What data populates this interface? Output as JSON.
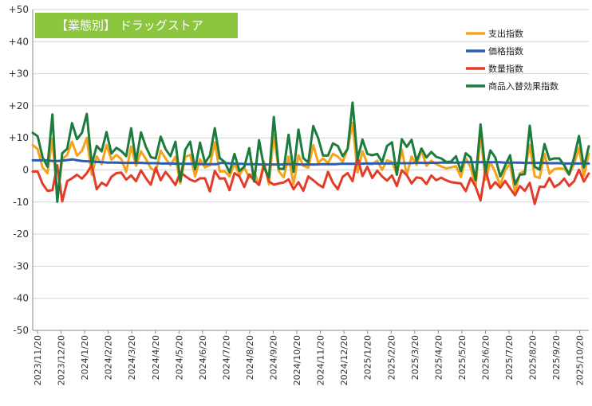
{
  "chart_data": {
    "type": "line",
    "title": "【業態別】 ドラッグストア",
    "ylim": [
      -50,
      50
    ],
    "y_ticks": [
      "+50",
      "+40",
      "+30",
      "+20",
      "+10",
      "0",
      "-10",
      "-20",
      "-30",
      "-40",
      "-50"
    ],
    "x_labels": [
      "2023/11/20",
      "2023/12/20",
      "2024/1/20",
      "2024/2/20",
      "2024/3/20",
      "2024/4/20",
      "2024/5/20",
      "2024/6/20",
      "2024/7/20",
      "2024/8/20",
      "2024/9/20",
      "2024/10/20",
      "2024/11/20",
      "2024/12/20",
      "2025/1/20",
      "2025/2/20",
      "2025/3/20",
      "2025/4/20",
      "2025/5/20",
      "2025/6/20",
      "2025/7/20",
      "2025/8/20",
      "2025/9/20",
      "2025/10/20"
    ],
    "grid": true,
    "legend_position": "top-right",
    "series": [
      {
        "name": "支出指数",
        "color": "#f5a31a",
        "values": [
          7.8,
          6.5,
          0.8,
          -1.0,
          9.8,
          -9.2,
          3.4,
          4.7,
          8.8,
          4.5,
          6.0,
          10.0,
          -1.5,
          4.2,
          1.8,
          7.8,
          3.2,
          4.7,
          3.4,
          -0.6,
          7.3,
          1.3,
          5.8,
          3.4,
          0.6,
          -0.6,
          6.0,
          3.6,
          1.5,
          4.1,
          -4.2,
          4.1,
          4.7,
          -2.0,
          3.3,
          0.8,
          1.5,
          8.6,
          -0.5,
          -0.4,
          -2.0,
          2.0,
          -1.5,
          0.7,
          -2.4,
          -0.6,
          -4.6,
          2.6,
          -4.5,
          11.0,
          -0.4,
          -2.3,
          4.2,
          -4.4,
          4.6,
          1.3,
          0.7,
          7.8,
          2.3,
          3.6,
          2.2,
          5.0,
          4.2,
          2.5,
          6.7,
          14.7,
          -0.8,
          5.8,
          1.9,
          1.8,
          2.9,
          0.0,
          3.0,
          2.5,
          -1.3,
          6.4,
          -1.6,
          4.2,
          1.6,
          6.1,
          1.3,
          2.9,
          1.8,
          1.1,
          0.5,
          0.8,
          1.2,
          -2.2,
          3.7,
          0.7,
          -5.1,
          10.6,
          -3.1,
          2.4,
          -0.7,
          -4.8,
          -0.1,
          1.9,
          -7.0,
          -1.0,
          -0.3,
          7.8,
          -2.0,
          -2.5,
          5.0,
          -1.2,
          0.3,
          0.5,
          0.4,
          -1.5,
          1.8,
          6.9,
          -1.9,
          5.0
        ]
      },
      {
        "name": "価格指数",
        "color": "#2a5cb8",
        "values": [
          3.0,
          3.0,
          3.0,
          3.0,
          2.8,
          2.8,
          2.9,
          3.1,
          3.3,
          3.0,
          2.8,
          2.7,
          2.6,
          2.5,
          2.4,
          2.3,
          2.3,
          2.3,
          2.2,
          2.2,
          2.2,
          2.2,
          2.2,
          2.1,
          2.1,
          2.1,
          2.0,
          2.0,
          2.0,
          1.9,
          1.9,
          1.9,
          1.9,
          1.9,
          1.8,
          1.8,
          1.8,
          1.8,
          2.2,
          2.1,
          2.0,
          1.9,
          1.9,
          1.8,
          1.8,
          1.8,
          1.7,
          1.7,
          1.7,
          1.7,
          1.7,
          1.8,
          1.8,
          1.8,
          1.7,
          1.7,
          1.7,
          1.7,
          1.8,
          1.8,
          1.8,
          1.8,
          1.9,
          1.9,
          1.9,
          1.9,
          1.9,
          2.0,
          2.0,
          2.0,
          2.0,
          2.0,
          2.0,
          2.1,
          2.1,
          2.1,
          2.1,
          2.2,
          2.2,
          2.2,
          2.2,
          2.2,
          2.3,
          2.3,
          2.3,
          2.3,
          2.3,
          2.4,
          2.4,
          2.4,
          2.4,
          2.4,
          2.4,
          2.4,
          2.4,
          2.3,
          2.3,
          2.3,
          2.3,
          2.2,
          2.2,
          2.2,
          2.2,
          2.2,
          2.1,
          2.1,
          2.1,
          2.0,
          2.0,
          2.0,
          2.0,
          2.0,
          2.0
        ]
      },
      {
        "name": "数量指数",
        "color": "#e23c2a",
        "values": [
          -0.5,
          -0.5,
          -4.3,
          -6.5,
          -6.3,
          1.5,
          -9.8,
          -3.5,
          -2.6,
          -1.5,
          -2.7,
          -1.0,
          1.5,
          -6.0,
          -4.0,
          -4.9,
          -2.1,
          -1.0,
          -0.8,
          -3.0,
          -1.7,
          -3.5,
          -0.1,
          -2.6,
          -4.6,
          0.7,
          -3.2,
          -0.6,
          -2.5,
          -4.7,
          -0.7,
          -1.9,
          -3.0,
          -3.6,
          -2.6,
          -2.6,
          -6.7,
          -0.3,
          -2.7,
          -2.6,
          -6.3,
          -1.0,
          -2.0,
          -5.3,
          -1.4,
          -3.3,
          -4.7,
          1.5,
          -3.6,
          -4.6,
          -4.2,
          -3.9,
          -2.9,
          -6.0,
          -3.8,
          -6.5,
          -2.0,
          -3.2,
          -4.5,
          -5.4,
          -0.6,
          -4.0,
          -6.0,
          -2.1,
          -1.0,
          -3.5,
          4.0,
          -1.9,
          1.0,
          -2.5,
          -0.2,
          -2.0,
          -3.3,
          -1.7,
          -5.0,
          -0.1,
          -1.6,
          -4.2,
          -2.3,
          -2.6,
          -4.4,
          -1.7,
          -3.2,
          -2.4,
          -3.2,
          -3.8,
          -4.0,
          -4.2,
          -6.6,
          -2.5,
          -5.2,
          -9.5,
          0.2,
          -5.7,
          -3.8,
          -5.5,
          -3.4,
          -5.7,
          -7.9,
          -5.0,
          -6.5,
          -4.0,
          -10.6,
          -5.2,
          -5.3,
          -2.5,
          -5.3,
          -4.4,
          -2.7,
          -5.0,
          -3.5,
          0.1,
          -3.6,
          -1.1
        ]
      },
      {
        "name": "商品入替効果指数",
        "color": "#1e7b3e",
        "values": [
          11.6,
          10.5,
          4.0,
          1.0,
          17.3,
          -9.9,
          5.2,
          6.6,
          14.6,
          9.6,
          11.6,
          17.5,
          1.7,
          7.5,
          5.8,
          11.8,
          5.1,
          6.9,
          5.9,
          4.3,
          13.0,
          2.6,
          11.7,
          7.2,
          4.0,
          3.6,
          10.4,
          6.5,
          4.3,
          8.8,
          -3.5,
          6.3,
          8.8,
          0.2,
          8.5,
          2.2,
          4.5,
          13.0,
          3.7,
          2.5,
          -0.8,
          5.0,
          -0.3,
          1.0,
          6.8,
          -3.6,
          9.3,
          0.8,
          -2.3,
          16.5,
          0.4,
          0.3,
          11.0,
          -0.6,
          12.6,
          3.7,
          2.3,
          13.7,
          9.9,
          4.5,
          4.5,
          8.3,
          7.5,
          4.3,
          6.6,
          21.0,
          3.3,
          9.5,
          5.0,
          4.6,
          5.0,
          2.4,
          7.5,
          8.6,
          -1.5,
          9.6,
          7.2,
          9.4,
          2.8,
          6.7,
          3.9,
          5.6,
          4.1,
          3.6,
          2.5,
          2.6,
          4.3,
          -0.4,
          5.2,
          3.9,
          -3.2,
          14.2,
          -0.5,
          6.1,
          3.9,
          -2.0,
          1.3,
          4.6,
          -4.5,
          -1.5,
          -1.3,
          13.8,
          1.0,
          0.1,
          8.1,
          3.2,
          3.6,
          3.6,
          1.5,
          -1.4,
          3.8,
          10.6,
          0.8,
          7.4
        ]
      }
    ]
  }
}
